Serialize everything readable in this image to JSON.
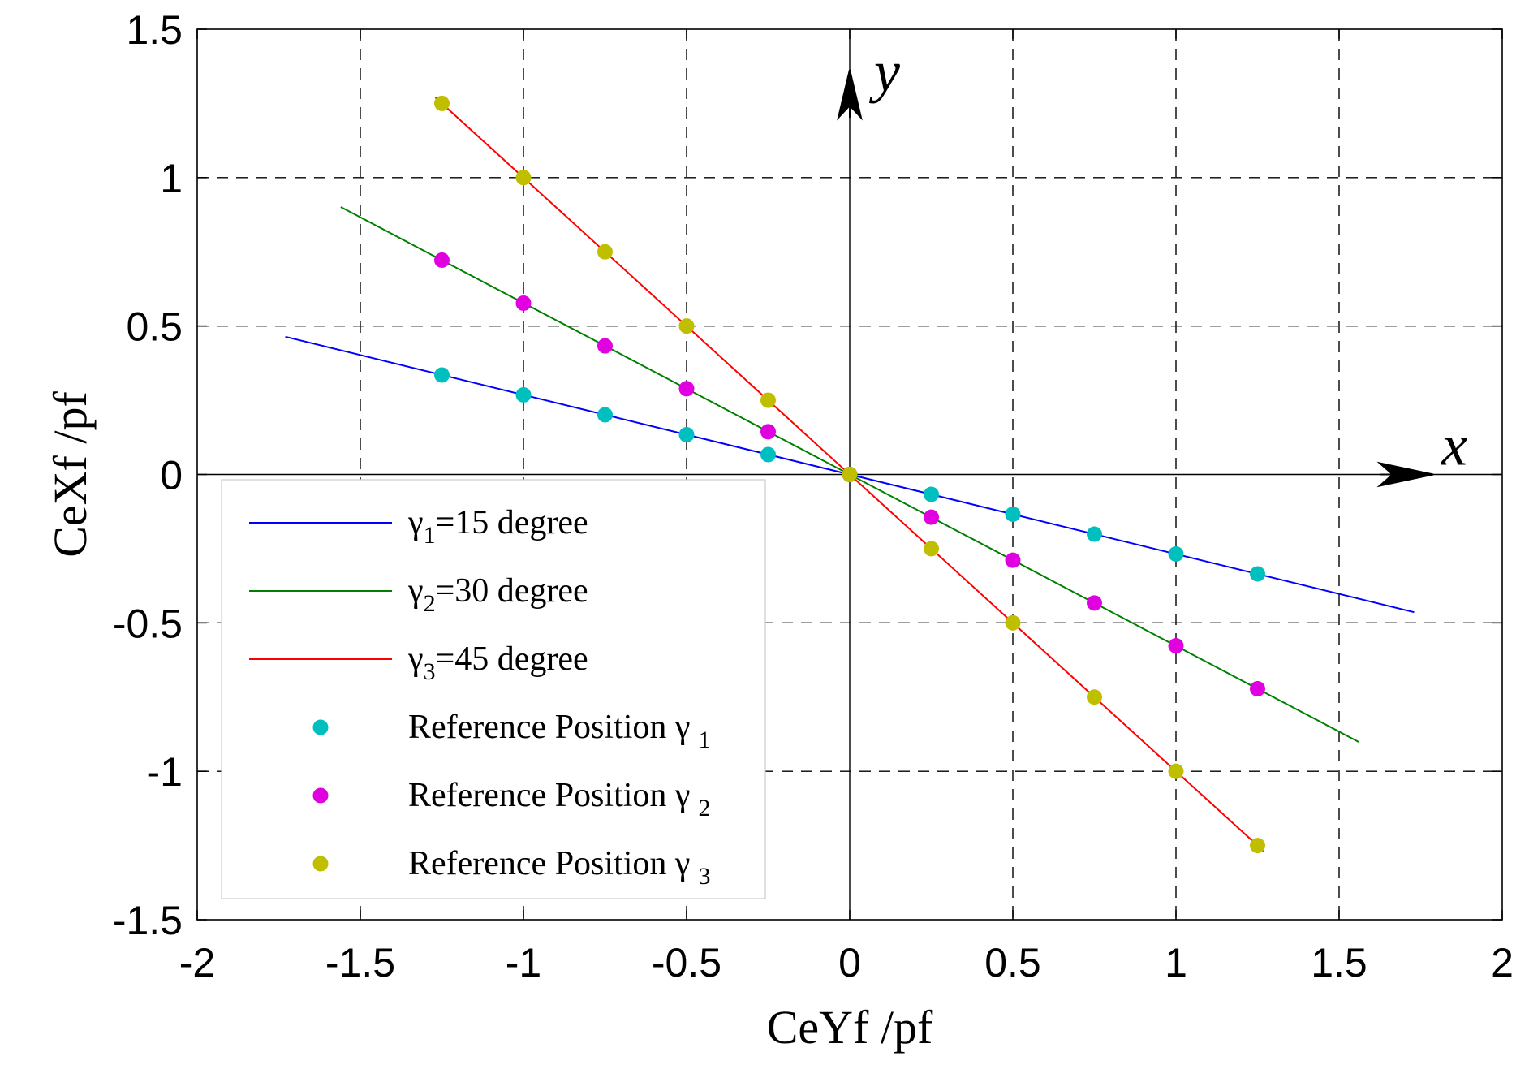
{
  "chart_data": {
    "type": "line",
    "xlabel": "CeYf /pf",
    "ylabel": "CeXf /pf",
    "xlim": [
      -2,
      2
    ],
    "ylim": [
      -1.5,
      1.5
    ],
    "x_ticks": [
      -2,
      -1.5,
      -1,
      -0.5,
      0,
      0.5,
      1,
      1.5,
      2
    ],
    "y_ticks": [
      -1.5,
      -1,
      -0.5,
      0,
      0.5,
      1,
      1.5
    ],
    "x_tick_labels": [
      "-2",
      "-1.5",
      "-1",
      "-0.5",
      "0",
      "0.5",
      "1",
      "1.5",
      "2"
    ],
    "y_tick_labels": [
      "-1.5",
      "-1",
      "-0.5",
      "0",
      "0.5",
      "1",
      "1.5"
    ],
    "grid": "dashed",
    "axis_arrows": {
      "x": "x",
      "y": "y"
    },
    "series": [
      {
        "name": "γ1=15 degree",
        "legend_symbol": "γ",
        "legend_sub": "1",
        "legend_rest": "=15 degree",
        "kind": "line",
        "color": "#0000ff",
        "x": [
          -1.73,
          1.73
        ],
        "y": [
          0.464,
          -0.464
        ]
      },
      {
        "name": "γ2=30 degree",
        "legend_symbol": "γ",
        "legend_sub": "2",
        "legend_rest": "=30 degree",
        "kind": "line",
        "color": "#008000",
        "x": [
          -1.56,
          1.56
        ],
        "y": [
          0.901,
          -0.901
        ]
      },
      {
        "name": "γ3=45 degree",
        "legend_symbol": "γ",
        "legend_sub": "3",
        "legend_rest": "=45 degree",
        "kind": "line",
        "color": "#ff0000",
        "x": [
          -1.27,
          1.27
        ],
        "y": [
          1.27,
          -1.27
        ]
      },
      {
        "name": "Reference Position γ 1",
        "legend_symbol": "Reference Position γ",
        "legend_sub": "1",
        "legend_rest": "",
        "kind": "scatter",
        "color": "#00bfbf",
        "x": [
          -1.25,
          -1,
          -0.75,
          -0.5,
          -0.25,
          0,
          0.25,
          0.5,
          0.75,
          1,
          1.25
        ],
        "y": [
          0.335,
          0.268,
          0.201,
          0.134,
          0.067,
          0,
          -0.067,
          -0.134,
          -0.201,
          -0.268,
          -0.335
        ]
      },
      {
        "name": "Reference Position γ 2",
        "legend_symbol": "Reference Position γ",
        "legend_sub": "2",
        "legend_rest": "",
        "kind": "scatter",
        "color": "#e000e0",
        "x": [
          -1.25,
          -1,
          -0.75,
          -0.5,
          -0.25,
          0,
          0.25,
          0.5,
          0.75,
          1,
          1.25
        ],
        "y": [
          0.722,
          0.577,
          0.433,
          0.289,
          0.144,
          0,
          -0.144,
          -0.289,
          -0.433,
          -0.577,
          -0.722
        ]
      },
      {
        "name": "Reference Position γ 3",
        "legend_symbol": "Reference Position γ",
        "legend_sub": "3",
        "legend_rest": "",
        "kind": "scatter",
        "color": "#bfbf00",
        "x": [
          -1.25,
          -1,
          -0.75,
          -0.5,
          -0.25,
          0,
          0.25,
          0.5,
          0.75,
          1,
          1.25
        ],
        "y": [
          1.25,
          1,
          0.75,
          0.5,
          0.25,
          0,
          -0.25,
          -0.5,
          -0.75,
          -1,
          -1.25
        ]
      }
    ],
    "legend_position": "bottom-left"
  }
}
